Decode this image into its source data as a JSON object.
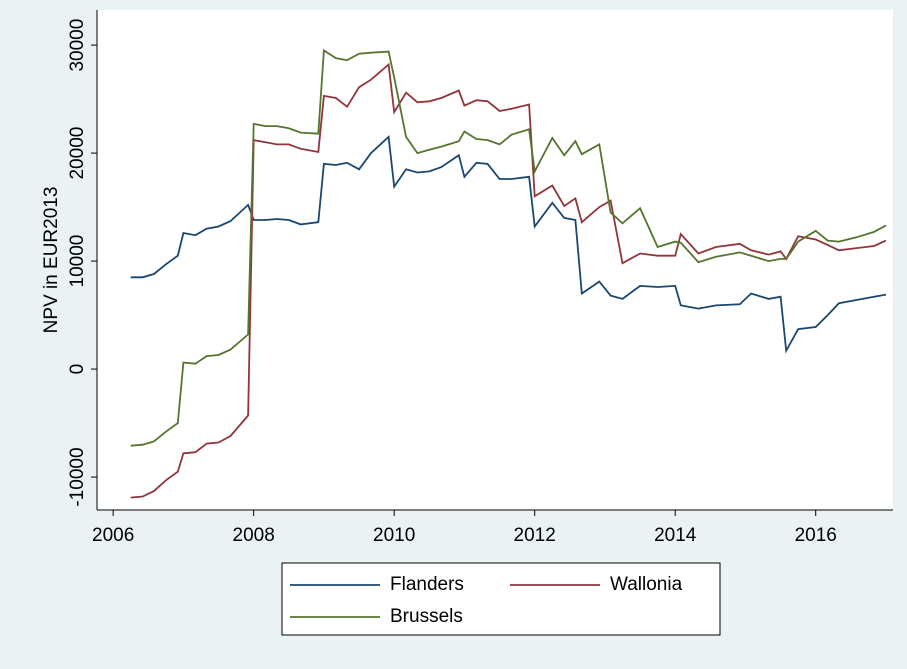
{
  "chart_data": {
    "type": "line",
    "y_label": "NPV in EUR2013",
    "x": [
      2006.25,
      2006.42,
      2006.58,
      2006.75,
      2006.92,
      2007.0,
      2007.17,
      2007.33,
      2007.5,
      2007.67,
      2007.92,
      2008.0,
      2008.17,
      2008.33,
      2008.5,
      2008.67,
      2008.92,
      2009.0,
      2009.17,
      2009.33,
      2009.5,
      2009.67,
      2009.92,
      2010.0,
      2010.17,
      2010.33,
      2010.5,
      2010.67,
      2010.92,
      2011.0,
      2011.17,
      2011.33,
      2011.5,
      2011.67,
      2011.92,
      2012.0,
      2012.25,
      2012.42,
      2012.58,
      2012.67,
      2012.92,
      2013.08,
      2013.25,
      2013.5,
      2013.75,
      2014.0,
      2014.08,
      2014.33,
      2014.58,
      2014.92,
      2015.08,
      2015.33,
      2015.5,
      2015.58,
      2015.75,
      2016.0,
      2016.17,
      2016.33,
      2016.58,
      2016.83,
      2017.0
    ],
    "series": [
      {
        "name": "Flanders",
        "color": "#1a476f",
        "values": [
          8500,
          8500,
          8800,
          9700,
          10500,
          12600,
          12400,
          13000,
          13200,
          13700,
          15200,
          13800,
          13800,
          13900,
          13800,
          13400,
          13600,
          19000,
          18900,
          19100,
          18500,
          20000,
          21500,
          16900,
          18500,
          18200,
          18300,
          18700,
          19800,
          17800,
          19100,
          19000,
          17600,
          17600,
          17800,
          13200,
          15400,
          14000,
          13800,
          7000,
          8100,
          6800,
          6500,
          7700,
          7600,
          7700,
          5900,
          5600,
          5900,
          6000,
          7000,
          6500,
          6700,
          1700,
          3700,
          3900,
          5000,
          6100,
          6400,
          6700,
          6900
        ]
      },
      {
        "name": "Wallonia",
        "color": "#90353b",
        "values": [
          -11900,
          -11800,
          -11300,
          -10300,
          -9500,
          -7800,
          -7700,
          -6900,
          -6800,
          -6200,
          -4300,
          21200,
          21000,
          20800,
          20800,
          20400,
          20100,
          25300,
          25100,
          24300,
          26100,
          26800,
          28200,
          23800,
          25600,
          24700,
          24800,
          25100,
          25800,
          24400,
          24900,
          24800,
          23900,
          24100,
          24500,
          16000,
          17000,
          15100,
          15800,
          13600,
          15000,
          15600,
          9800,
          10700,
          10500,
          10500,
          12500,
          10700,
          11300,
          11600,
          11000,
          10600,
          10900,
          10200,
          12300,
          12000,
          11500,
          11000,
          11200,
          11400,
          11900
        ]
      },
      {
        "name": "Brussels",
        "color": "#55752f",
        "values": [
          -7100,
          -7000,
          -6700,
          -5800,
          -5000,
          600,
          500,
          1200,
          1300,
          1800,
          3200,
          22700,
          22500,
          22500,
          22300,
          21900,
          21800,
          29500,
          28800,
          28600,
          29200,
          29300,
          29400,
          27000,
          21500,
          20000,
          20300,
          20600,
          21100,
          22000,
          21300,
          21200,
          20800,
          21700,
          22200,
          18300,
          21400,
          19800,
          21100,
          19900,
          20800,
          14500,
          13500,
          14900,
          11300,
          11800,
          11700,
          9900,
          10400,
          10800,
          10500,
          10000,
          10200,
          10200,
          11800,
          12800,
          11900,
          11800,
          12200,
          12700,
          13300
        ]
      }
    ],
    "xlim": [
      2005.77,
      2017.1
    ],
    "ylim": [
      -13050,
      33250
    ],
    "xticks": [
      2006,
      2008,
      2010,
      2012,
      2014,
      2016
    ],
    "yticks": [
      -10000,
      0,
      10000,
      20000,
      30000
    ],
    "legend_position": "bottom"
  }
}
